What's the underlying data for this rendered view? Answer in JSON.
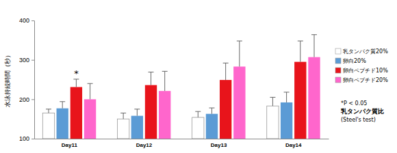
{
  "chart_data": {
    "type": "bar",
    "y_label": "水泳持続時間（秒）",
    "categories": [
      "Day11",
      "Day12",
      "Day13",
      "Day14"
    ],
    "series": [
      {
        "name": "乳タンパク質20%",
        "color": "#ffffff",
        "values": [
          165,
          150,
          154,
          183
        ],
        "errors": [
          10,
          15,
          15,
          22
        ]
      },
      {
        "name": "卵白20%",
        "color": "#5b9bd5",
        "values": [
          177,
          158,
          163,
          192
        ],
        "errors": [
          17,
          17,
          15,
          26
        ]
      },
      {
        "name": "卵白ペプチド10%",
        "color": "#e8141b",
        "values": [
          231,
          236,
          249,
          295
        ],
        "errors": [
          20,
          33,
          43,
          53
        ]
      },
      {
        "name": "卵白ペプチド20%",
        "color": "#ff66cc",
        "values": [
          200,
          221,
          283,
          307
        ],
        "errors": [
          40,
          50,
          65,
          57
        ]
      }
    ],
    "ylim": [
      100,
      400
    ],
    "yticks": [
      100,
      200,
      300,
      400
    ],
    "grid": false,
    "legend": "right",
    "annotations": [
      {
        "text": "*",
        "category": "Day11",
        "series": "卵白ペプチド10%"
      }
    ],
    "note": [
      "*P < 0.05",
      "乳タンパク質比",
      "(Steel's test)"
    ]
  }
}
